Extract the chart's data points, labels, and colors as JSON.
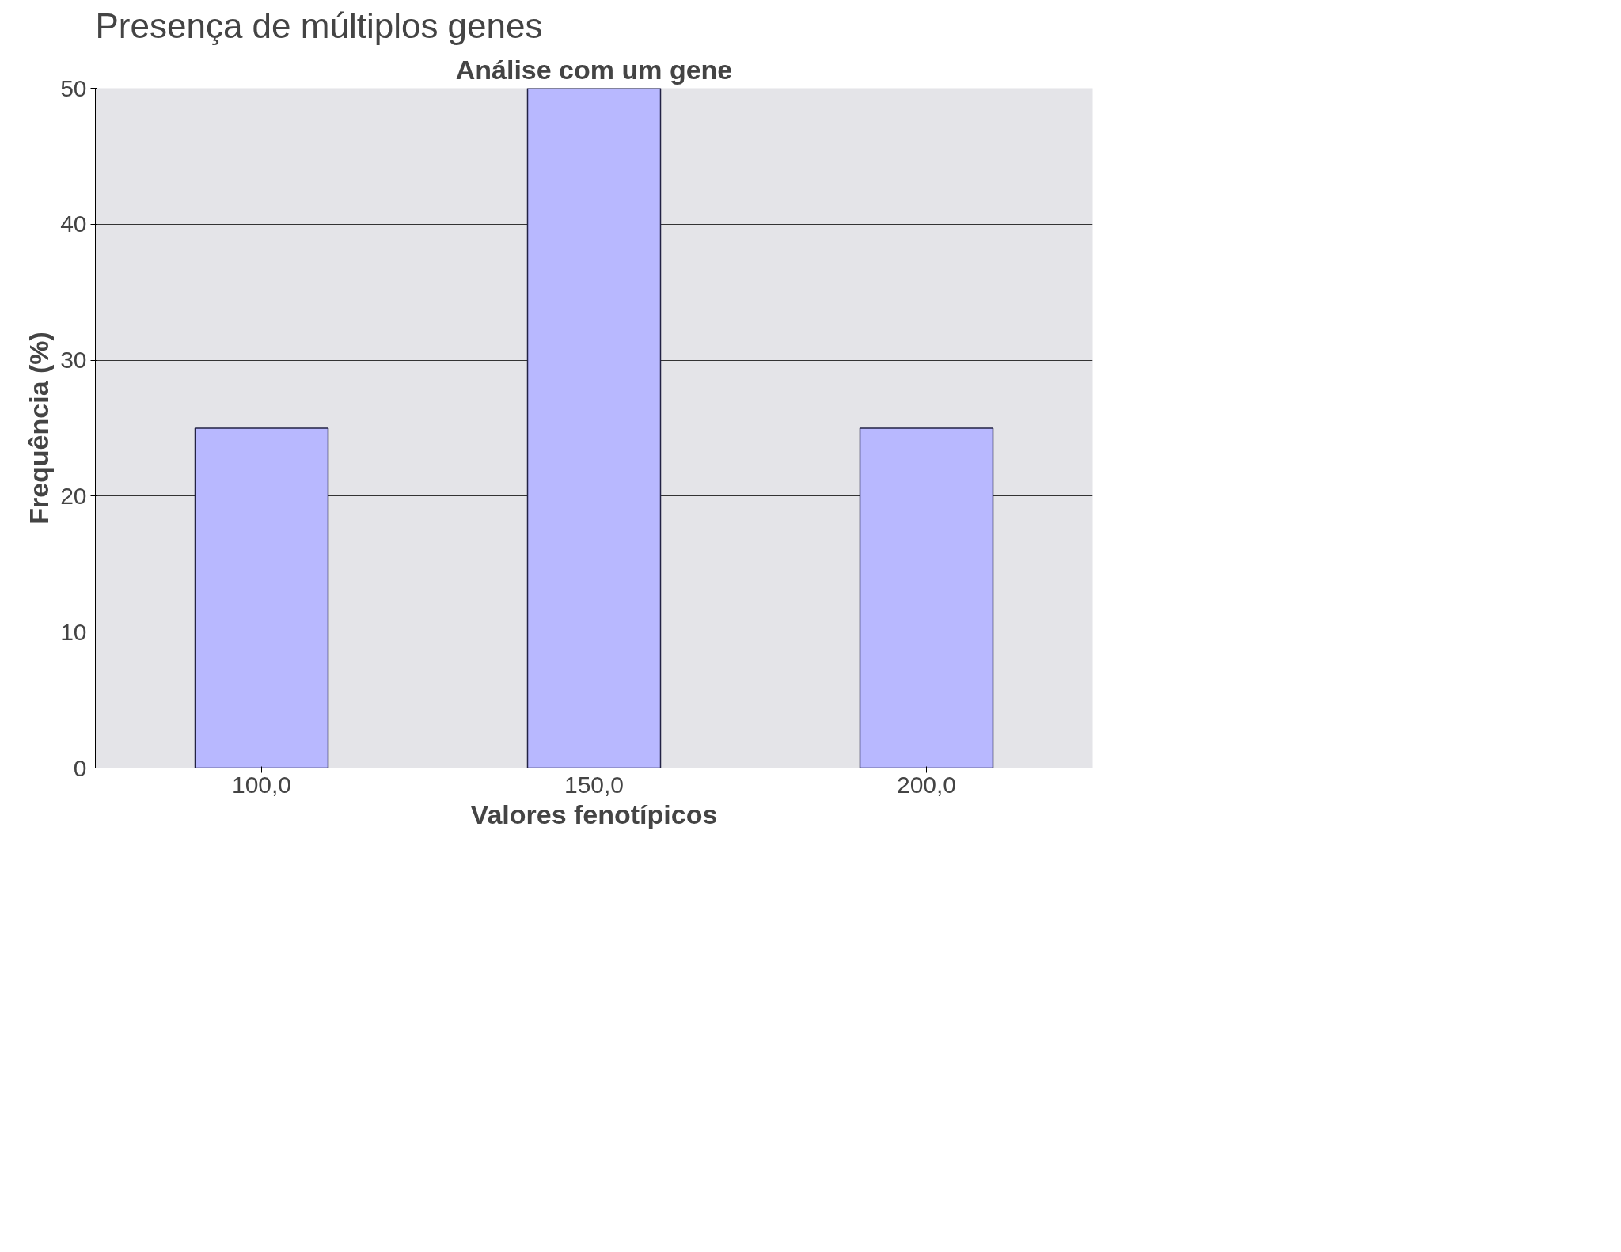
{
  "chart_data": {
    "type": "bar",
    "title": "Presença de múltiplos genes",
    "subtitle": "Análise com um gene",
    "xlabel": "Valores fenotípicos",
    "ylabel": "Frequência (%)",
    "categories": [
      "100,0",
      "150,0",
      "200,0"
    ],
    "values": [
      25,
      50,
      25
    ],
    "color": "#b8b8ff",
    "ylim": [
      0,
      50
    ],
    "yticks": [
      0,
      10,
      20,
      30,
      40,
      50
    ],
    "grid": "y"
  }
}
